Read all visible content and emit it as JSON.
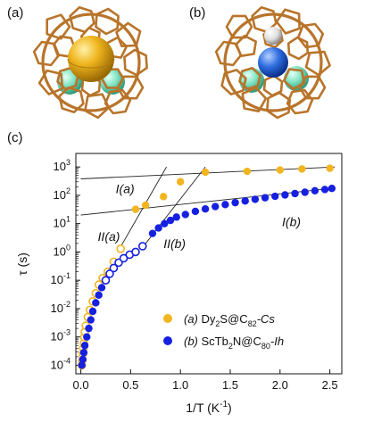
{
  "panels": {
    "a": "(a)",
    "b": "(b)",
    "c": "(c)"
  },
  "colors": {
    "cage": "#b8742a",
    "dy": "#f0b51e",
    "sulfur_cap": "#f3c52a",
    "terbium": "#7fe3c2",
    "scandium": "#e0e0e0",
    "nitrogen": "#2f6ee0",
    "series_a": "#f2b520",
    "series_b": "#1620e0",
    "fit_lines": "#222222"
  },
  "icons": {
    "molecule_a": "dy2s-in-c82-cage-icon",
    "molecule_b": "sctb2n-in-c80-cage-icon"
  },
  "chart_data": {
    "type": "scatter",
    "xlabel": "1/T (K",
    "xlabel_sup": "-1",
    "xlabel_close": ")",
    "ylabel": "τ (s)",
    "xlim": [
      -0.05,
      2.62
    ],
    "ylim": [
      5e-05,
      3000
    ],
    "yscale": "log",
    "x_ticks": [
      "0.0",
      "0.5",
      "1.0",
      "1.5",
      "2.0",
      "2.5"
    ],
    "x_tick_values": [
      0,
      0.5,
      1.0,
      1.5,
      2.0,
      2.5
    ],
    "y_tick_exponents": [
      -4,
      -3,
      -2,
      -1,
      0,
      1,
      2,
      3
    ],
    "y_tick_base": "10",
    "grid": false,
    "legend_position": "lower-right",
    "series": [
      {
        "name": "(a) Dy2S@C82-Cs",
        "legend_prefix": "(a)",
        "legend_main": "Dy",
        "legend_sub1": "2",
        "legend_mid": "S@C",
        "legend_sub2": "82",
        "legend_suffix": "-Cs",
        "filled": {
          "x": [
            0.55,
            0.65,
            0.83,
            1.0,
            1.25,
            1.67,
            2.0,
            2.22,
            2.5
          ],
          "y": [
            32,
            45,
            90,
            300,
            650,
            700,
            780,
            850,
            900
          ]
        },
        "open": {
          "x": [
            0.01,
            0.015,
            0.02,
            0.025,
            0.03,
            0.035,
            0.04,
            0.05,
            0.07,
            0.09,
            0.12,
            0.15,
            0.18,
            0.22,
            0.27,
            0.33,
            0.4
          ],
          "y": [
            0.0001,
            0.00015,
            0.00025,
            0.0004,
            0.0006,
            0.001,
            0.0015,
            0.0025,
            0.005,
            0.009,
            0.018,
            0.035,
            0.07,
            0.12,
            0.2,
            0.45,
            1.3
          ]
        }
      },
      {
        "name": "(b) ScTb2N@C80-Ih",
        "legend_prefix": "(b)",
        "legend_main": "ScTb",
        "legend_sub1": "2",
        "legend_mid": "N@C",
        "legend_sub2": "80",
        "legend_suffix": "-Ih",
        "filled": {
          "x": [
            0.01,
            0.02,
            0.03,
            0.04,
            0.06,
            0.08,
            0.1,
            0.12,
            0.15,
            0.18,
            0.21,
            0.72,
            0.78,
            0.84,
            0.9,
            0.96,
            1.05,
            1.15,
            1.25,
            1.35,
            1.45,
            1.55,
            1.65,
            1.75,
            1.85,
            1.95,
            2.05,
            2.15,
            2.25,
            2.35,
            2.45,
            2.52
          ],
          "y": [
            0.0001,
            0.00016,
            0.00028,
            0.0005,
            0.001,
            0.002,
            0.004,
            0.008,
            0.016,
            0.03,
            0.055,
            4.5,
            7,
            10,
            13,
            17,
            21,
            27,
            33,
            40,
            47,
            55,
            63,
            72,
            82,
            92,
            103,
            115,
            128,
            145,
            160,
            175
          ]
        },
        "open": {
          "x": [
            0.25,
            0.29,
            0.33,
            0.38,
            0.43,
            0.49,
            0.55,
            0.62
          ],
          "y": [
            0.1,
            0.17,
            0.27,
            0.42,
            0.6,
            0.8,
            1.0,
            1.6
          ]
        }
      }
    ],
    "fit_lines": [
      {
        "label": "I(a)",
        "x": [
          0.0,
          2.55
        ],
        "y": [
          380,
          1000
        ]
      },
      {
        "label": "I(b)",
        "x": [
          0.0,
          2.55
        ],
        "y": [
          20,
          180
        ]
      },
      {
        "label": "II(a)",
        "x": [
          0.37,
          0.86
        ],
        "y": [
          1.0,
          1000
        ]
      },
      {
        "label": "II(b)",
        "x": [
          0.63,
          1.25
        ],
        "y": [
          1.6,
          1000
        ]
      }
    ],
    "annotations": [
      {
        "text": "I(a)",
        "x": 0.35,
        "y": 120
      },
      {
        "text": "II(a)",
        "x": 0.17,
        "y": 2.5
      },
      {
        "text": "II(b)",
        "x": 0.83,
        "y": 1.4
      },
      {
        "text": "I(b)",
        "x": 2.02,
        "y": 8
      }
    ]
  }
}
